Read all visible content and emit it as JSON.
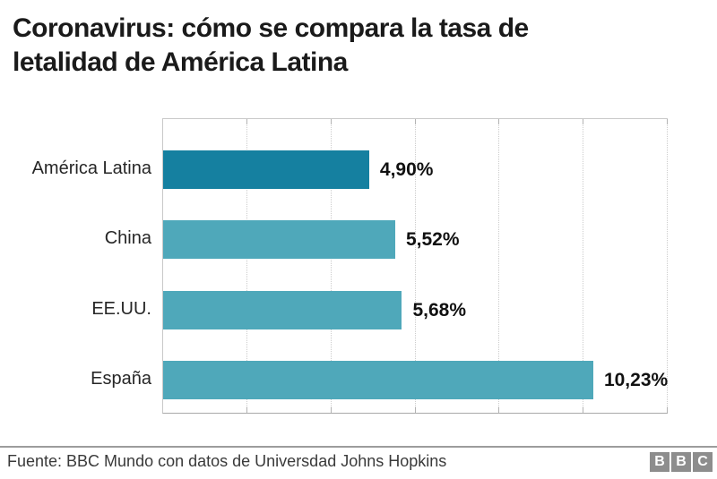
{
  "header": {
    "title_line1": "Coronavirus: cómo se compara la tasa de",
    "title_line2": "letalidad de América Latina"
  },
  "chart_data": {
    "type": "bar",
    "orientation": "horizontal",
    "title": "Coronavirus: cómo se compara la tasa de letalidad de América Latina",
    "categories": [
      "América Latina",
      "China",
      "EE.UU.",
      "España"
    ],
    "values": [
      4.9,
      5.52,
      5.68,
      10.23
    ],
    "value_labels": [
      "4,90%",
      "5,52%",
      "5,68%",
      "10,23%"
    ],
    "unit": "percent",
    "xlabel": "",
    "ylabel": "",
    "xlim": [
      0,
      12
    ],
    "gridline_interval": 2,
    "grid": true,
    "legend": "none",
    "highlight_category": "América Latina",
    "bar_colors": [
      "#1580a0",
      "#4fa8ba",
      "#4fa8ba",
      "#4fa8ba"
    ]
  },
  "footer": {
    "source": "Fuente: BBC Mundo con datos de Universdad Johns Hopkins",
    "logo_letters": [
      "B",
      "B",
      "C"
    ]
  },
  "colors": {
    "bar_highlight": "#1580a0",
    "bar_default": "#4fa8ba",
    "gridline": "#cccccc",
    "axis_border": "#a9a9a9",
    "divider": "#9c9c9c",
    "title_text": "#1a1a1a",
    "label_text": "#262626",
    "value_text": "#111111",
    "logo_block": "#8d8d8d"
  }
}
